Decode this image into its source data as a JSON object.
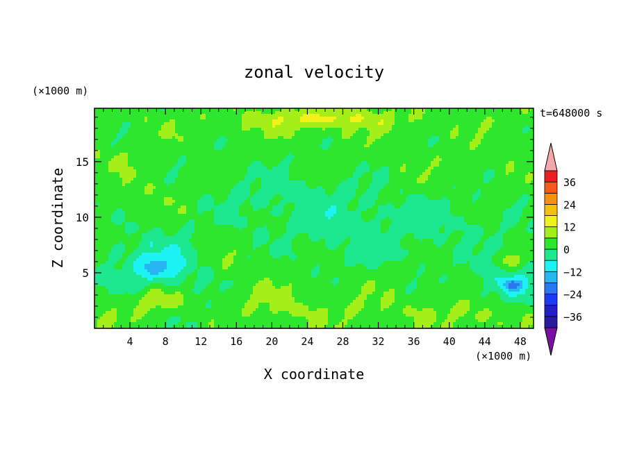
{
  "chart_data": {
    "type": "heatmap",
    "title": "zonal velocity",
    "xlabel": "X coordinate",
    "ylabel": "Z coordinate",
    "x_unit": "(×1000 m)",
    "y_unit": "(×1000 m)",
    "time_label": "t=648000 s",
    "xlim": [
      0,
      49.5
    ],
    "ylim": [
      0,
      19.8
    ],
    "x_ticks": [
      4,
      8,
      12,
      16,
      20,
      24,
      28,
      32,
      36,
      40,
      44,
      48
    ],
    "y_ticks": [
      5,
      10,
      15
    ],
    "colorbar": {
      "ticks": [
        36,
        24,
        12,
        0,
        -12,
        -24,
        -36
      ],
      "levels": [
        -42,
        -36,
        -30,
        -24,
        -18,
        -12,
        -6,
        0,
        6,
        12,
        18,
        24,
        30,
        36,
        42
      ],
      "colors": [
        "#7b0fa3",
        "#2a1aa0",
        "#1f20c8",
        "#1d3af0",
        "#2a78f0",
        "#28b6f2",
        "#1ef2f2",
        "#1ee88f",
        "#2ee62e",
        "#a4ef1a",
        "#f0f21a",
        "#f5c00f",
        "#f59210",
        "#f25a1e",
        "#e82020",
        "#f2a8a8"
      ],
      "extend": "both"
    },
    "field_description": "Contoured zonal velocity, mostly between -12 and +12; yellow band (6 to 12) near the top at x 16-34, z ~18-19; cyan/blue minima (about -12 to -18) near x≈7, z≈5.5 and x≈47, z≈4; yellow-green maxima near x≈7, z≈2.5 and x≈47, z≈6.",
    "blobs": [
      {
        "x": 25,
        "z": 18.6,
        "rx": 14,
        "rz": 1.3,
        "v": 4
      },
      {
        "x": 26,
        "z": 18.9,
        "rx": 7,
        "rz": 0.7,
        "v": 7
      },
      {
        "x": 7,
        "z": 11.5,
        "rx": 5,
        "rz": 2.5,
        "v": 3
      },
      {
        "x": 20,
        "z": 12.5,
        "rx": 12,
        "rz": 2.5,
        "v": -3
      },
      {
        "x": 27,
        "z": 10.0,
        "rx": 12,
        "rz": 3.0,
        "v": -4
      },
      {
        "x": 41,
        "z": 10.0,
        "rx": 9,
        "rz": 3.0,
        "v": -3
      },
      {
        "x": 7,
        "z": 5.5,
        "rx": 6,
        "rz": 3.5,
        "v": -9
      },
      {
        "x": 7,
        "z": 5.5,
        "rx": 1.8,
        "rz": 0.9,
        "v": -10
      },
      {
        "x": 7,
        "z": 2.6,
        "rx": 3.5,
        "rz": 1.2,
        "v": 10
      },
      {
        "x": 47,
        "z": 4.2,
        "rx": 4.5,
        "rz": 2.5,
        "v": -8
      },
      {
        "x": 47,
        "z": 3.9,
        "rx": 1.2,
        "rz": 0.6,
        "v": -14
      },
      {
        "x": 47,
        "z": 6.0,
        "rx": 1.5,
        "rz": 0.8,
        "v": 10
      },
      {
        "x": 25,
        "z": 1.5,
        "rx": 18,
        "rz": 1.5,
        "v": 3
      },
      {
        "x": 13,
        "z": 1.2,
        "rx": 5,
        "rz": 1.3,
        "v": -3
      },
      {
        "x": 20,
        "z": 2.8,
        "rx": 3,
        "rz": 1.5,
        "v": 3
      },
      {
        "x": 31,
        "z": 7.0,
        "rx": 7,
        "rz": 2.0,
        "v": -3
      },
      {
        "x": 14,
        "z": 6.5,
        "rx": 2.5,
        "rz": 2.0,
        "v": 3
      },
      {
        "x": 44,
        "z": 1.2,
        "rx": 6,
        "rz": 1.2,
        "v": 4
      },
      {
        "x": 1.5,
        "z": 1.0,
        "rx": 3,
        "rz": 1.0,
        "v": 3
      },
      {
        "x": 3,
        "z": 15.5,
        "rx": 3,
        "rz": 1.0,
        "v": 3
      },
      {
        "x": 38,
        "z": 13.0,
        "rx": 6,
        "rz": 2.0,
        "v": 2
      }
    ]
  }
}
